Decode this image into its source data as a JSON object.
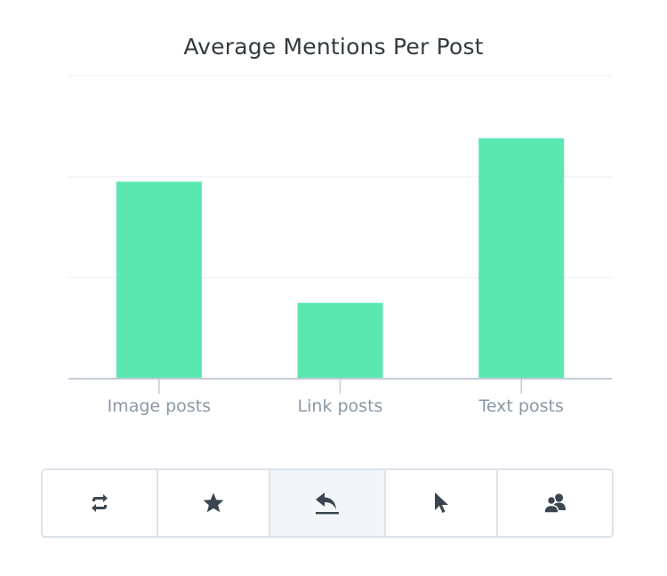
{
  "chart_data": {
    "type": "bar",
    "title": "Average Mentions Per Post",
    "categories": [
      "Image posts",
      "Link posts",
      "Text posts"
    ],
    "values": [
      1.95,
      0.75,
      2.38
    ],
    "xlabel": "",
    "ylabel": "",
    "ylim": [
      0,
      3
    ],
    "grid": true,
    "legend": "none",
    "bar_color": "#5be8b0",
    "axis_color": "#c2cad8",
    "grid_color": "#f1f3f6"
  },
  "toolbar": {
    "buttons": [
      {
        "name": "retweets",
        "icon": "retweet-icon",
        "active": false
      },
      {
        "name": "favorites",
        "icon": "star-icon",
        "active": false
      },
      {
        "name": "replies",
        "icon": "reply-icon",
        "active": true
      },
      {
        "name": "clicks",
        "icon": "cursor-icon",
        "active": false
      },
      {
        "name": "mentions",
        "icon": "users-icon",
        "active": false
      }
    ]
  }
}
